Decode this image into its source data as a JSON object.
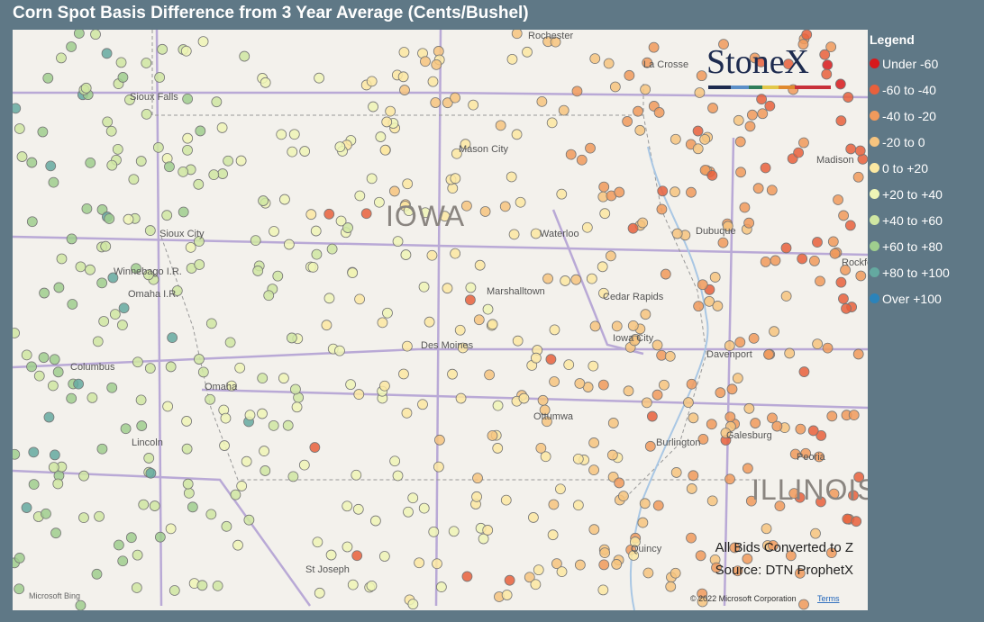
{
  "header": {
    "title": "Corn Spot Basis Difference from 3 Year Average (Cents/Bushel)"
  },
  "legend": {
    "title": "Legend",
    "items": [
      {
        "label": "Under -60",
        "color": "#d7191c"
      },
      {
        "label": "-60 to -40",
        "color": "#e8603c"
      },
      {
        "label": "-40 to -20",
        "color": "#f09a5c"
      },
      {
        "label": "-20 to 0",
        "color": "#f6c47f"
      },
      {
        "label": "0 to +20",
        "color": "#fbe8a2"
      },
      {
        "label": "+20 to +40",
        "color": "#eef5b6"
      },
      {
        "label": "+40 to +60",
        "color": "#cfe6a2"
      },
      {
        "label": "+60 to +80",
        "color": "#9fce8e"
      },
      {
        "label": "+80 to +100",
        "color": "#64a9a0"
      },
      {
        "label": "Over +100",
        "color": "#2b83ba"
      }
    ]
  },
  "map": {
    "labels": {
      "rochester": "Rochester",
      "la_crosse": "La Crosse",
      "sioux_falls": "Sioux Falls",
      "mason_city": "Mason City",
      "madison": "Madison",
      "iowa": "IOWA",
      "waterloo": "Waterloo",
      "dubuque": "Dubuque",
      "sioux_city": "Sioux City",
      "winnebago": "Winnebago I.R.",
      "omaha_ir": "Omaha I.R.",
      "marshalltown": "Marshalltown",
      "cedar_rapids": "Cedar Rapids",
      "rockford": "Rockford",
      "iowa_city": "Iowa City",
      "des_moines": "Des Moines",
      "davenport": "Davenport",
      "columbus": "Columbus",
      "omaha": "Omaha",
      "ottumwa": "Ottumwa",
      "galesburg": "Galesburg",
      "lincoln": "Lincoln",
      "burlington": "Burlington",
      "peoria": "Peoria",
      "illinois": "ILLINOIS",
      "quincy": "Quincy",
      "st_joseph": "St Joseph"
    },
    "logo": "StoneX",
    "notes": [
      "All Bids Converted to Z",
      "Source: DTN ProphetX"
    ],
    "attribution": {
      "bing": "Microsoft Bing",
      "copyright": "© 2022 Microsoft Corporation",
      "terms": "Terms"
    }
  }
}
